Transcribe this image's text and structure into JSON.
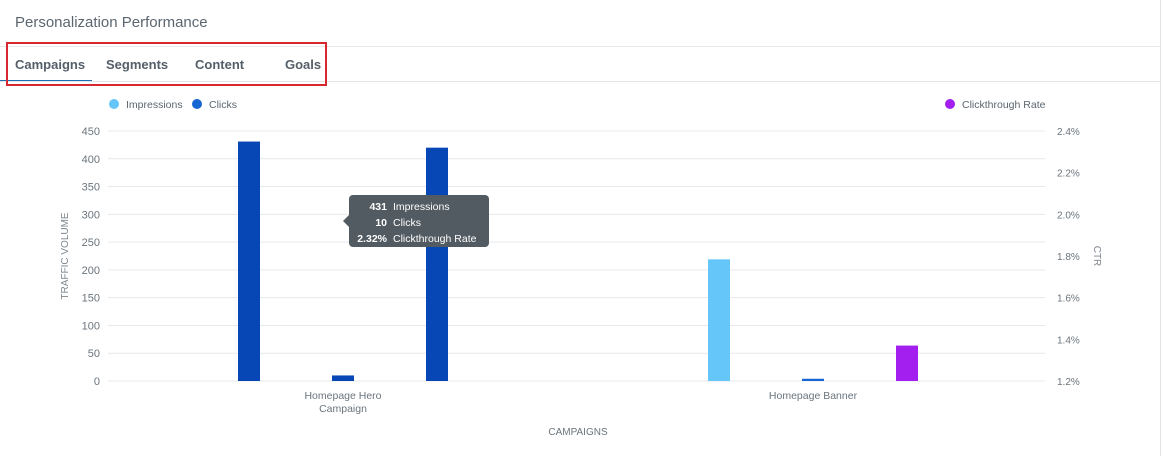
{
  "panel": {
    "title": "Personalization Performance"
  },
  "tabs": [
    {
      "label": "Campaigns",
      "active": true
    },
    {
      "label": "Segments",
      "active": false
    },
    {
      "label": "Content",
      "active": false
    },
    {
      "label": "Goals",
      "active": false
    }
  ],
  "tooltip": {
    "rows": [
      {
        "value": "431",
        "label": "Impressions"
      },
      {
        "value": "10",
        "label": "Clicks"
      },
      {
        "value": "2.32%",
        "label": "Clickthrough Rate"
      }
    ]
  },
  "colors": {
    "impressions": "#65c6fa",
    "impressions_highlighted": "#0747b5",
    "clicks": "#1565d2",
    "ctr": "#a21ff0",
    "ctr_highlighted": "#0747b5",
    "grid": "#e6e9ec",
    "tab_highlight_box": "#d8282f"
  },
  "chart_data": {
    "type": "bar",
    "categories": [
      [
        "Homepage Hero",
        "Campaign"
      ],
      [
        "Homepage Banner"
      ]
    ],
    "xlabel": "CAMPAIGNS",
    "ylabel": "TRAFFIC VOLUME",
    "y2label": "CTR",
    "ylim": [
      0,
      450
    ],
    "yticks": [
      0,
      50,
      100,
      150,
      200,
      250,
      300,
      350,
      400,
      450
    ],
    "y2lim": [
      1.2,
      2.4
    ],
    "y2ticks": [
      "1.2%",
      "1.4%",
      "1.6%",
      "1.8%",
      "2.0%",
      "2.2%",
      "2.4%"
    ],
    "grid": true,
    "legend": {
      "left": [
        "Impressions",
        "Clicks"
      ],
      "right": [
        "Clickthrough Rate"
      ]
    },
    "series": [
      {
        "name": "Impressions",
        "axis": "left",
        "values": [
          431,
          219
        ]
      },
      {
        "name": "Clicks",
        "axis": "left",
        "values": [
          10,
          4
        ]
      },
      {
        "name": "Clickthrough Rate",
        "axis": "right",
        "values": [
          2.32,
          1.37
        ]
      }
    ],
    "highlighted_category": 0
  }
}
